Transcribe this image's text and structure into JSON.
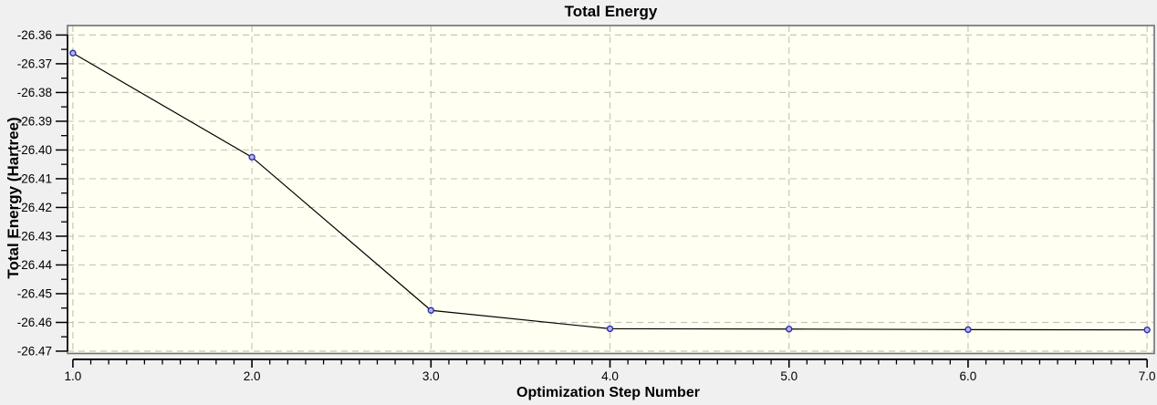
{
  "window": {
    "outer_background": "#f0f0f0"
  },
  "chart_data": {
    "type": "line",
    "title": "Total Energy",
    "xlabel": "Optimization Step Number",
    "ylabel": "Total Energy (Hartree)",
    "x": [
      1.0,
      2.0,
      3.0,
      4.0,
      5.0,
      6.0,
      7.0
    ],
    "y": [
      -26.3663,
      -26.4025,
      -26.4558,
      -26.4622,
      -26.4623,
      -26.4625,
      -26.4626
    ],
    "xlim": [
      0.97,
      7.04
    ],
    "ylim": [
      -26.4708,
      -26.3567
    ],
    "x_major_ticks": [
      1.0,
      2.0,
      3.0,
      4.0,
      5.0,
      6.0,
      7.0
    ],
    "x_tick_labels": [
      "1.0",
      "2.0",
      "3.0",
      "4.0",
      "5.0",
      "6.0",
      "7.0"
    ],
    "x_minor_step": 0.1,
    "y_major_ticks": [
      -26.36,
      -26.37,
      -26.38,
      -26.39,
      -26.4,
      -26.41,
      -26.42,
      -26.43,
      -26.44,
      -26.45,
      -26.46,
      -26.47
    ],
    "y_tick_labels": [
      "-26.36",
      "-26.37",
      "-26.38",
      "-26.39",
      "-26.40",
      "-26.41",
      "-26.42",
      "-26.43",
      "-26.44",
      "-26.45",
      "-26.46",
      "-26.47"
    ],
    "y_minor_step": 0.005,
    "grid": "dashed-major",
    "legend_position": "none",
    "marker_shape": "circle",
    "colors": {
      "plot_bg": "#fffff2",
      "outer_bg": "#f0f0f0",
      "grid": "#c6c6bd",
      "border": "#707070",
      "axis": "#000000",
      "line": "#000000",
      "marker_stroke": "#3030a8",
      "marker_fill": "#b4b9ee",
      "text": "#000000"
    }
  }
}
